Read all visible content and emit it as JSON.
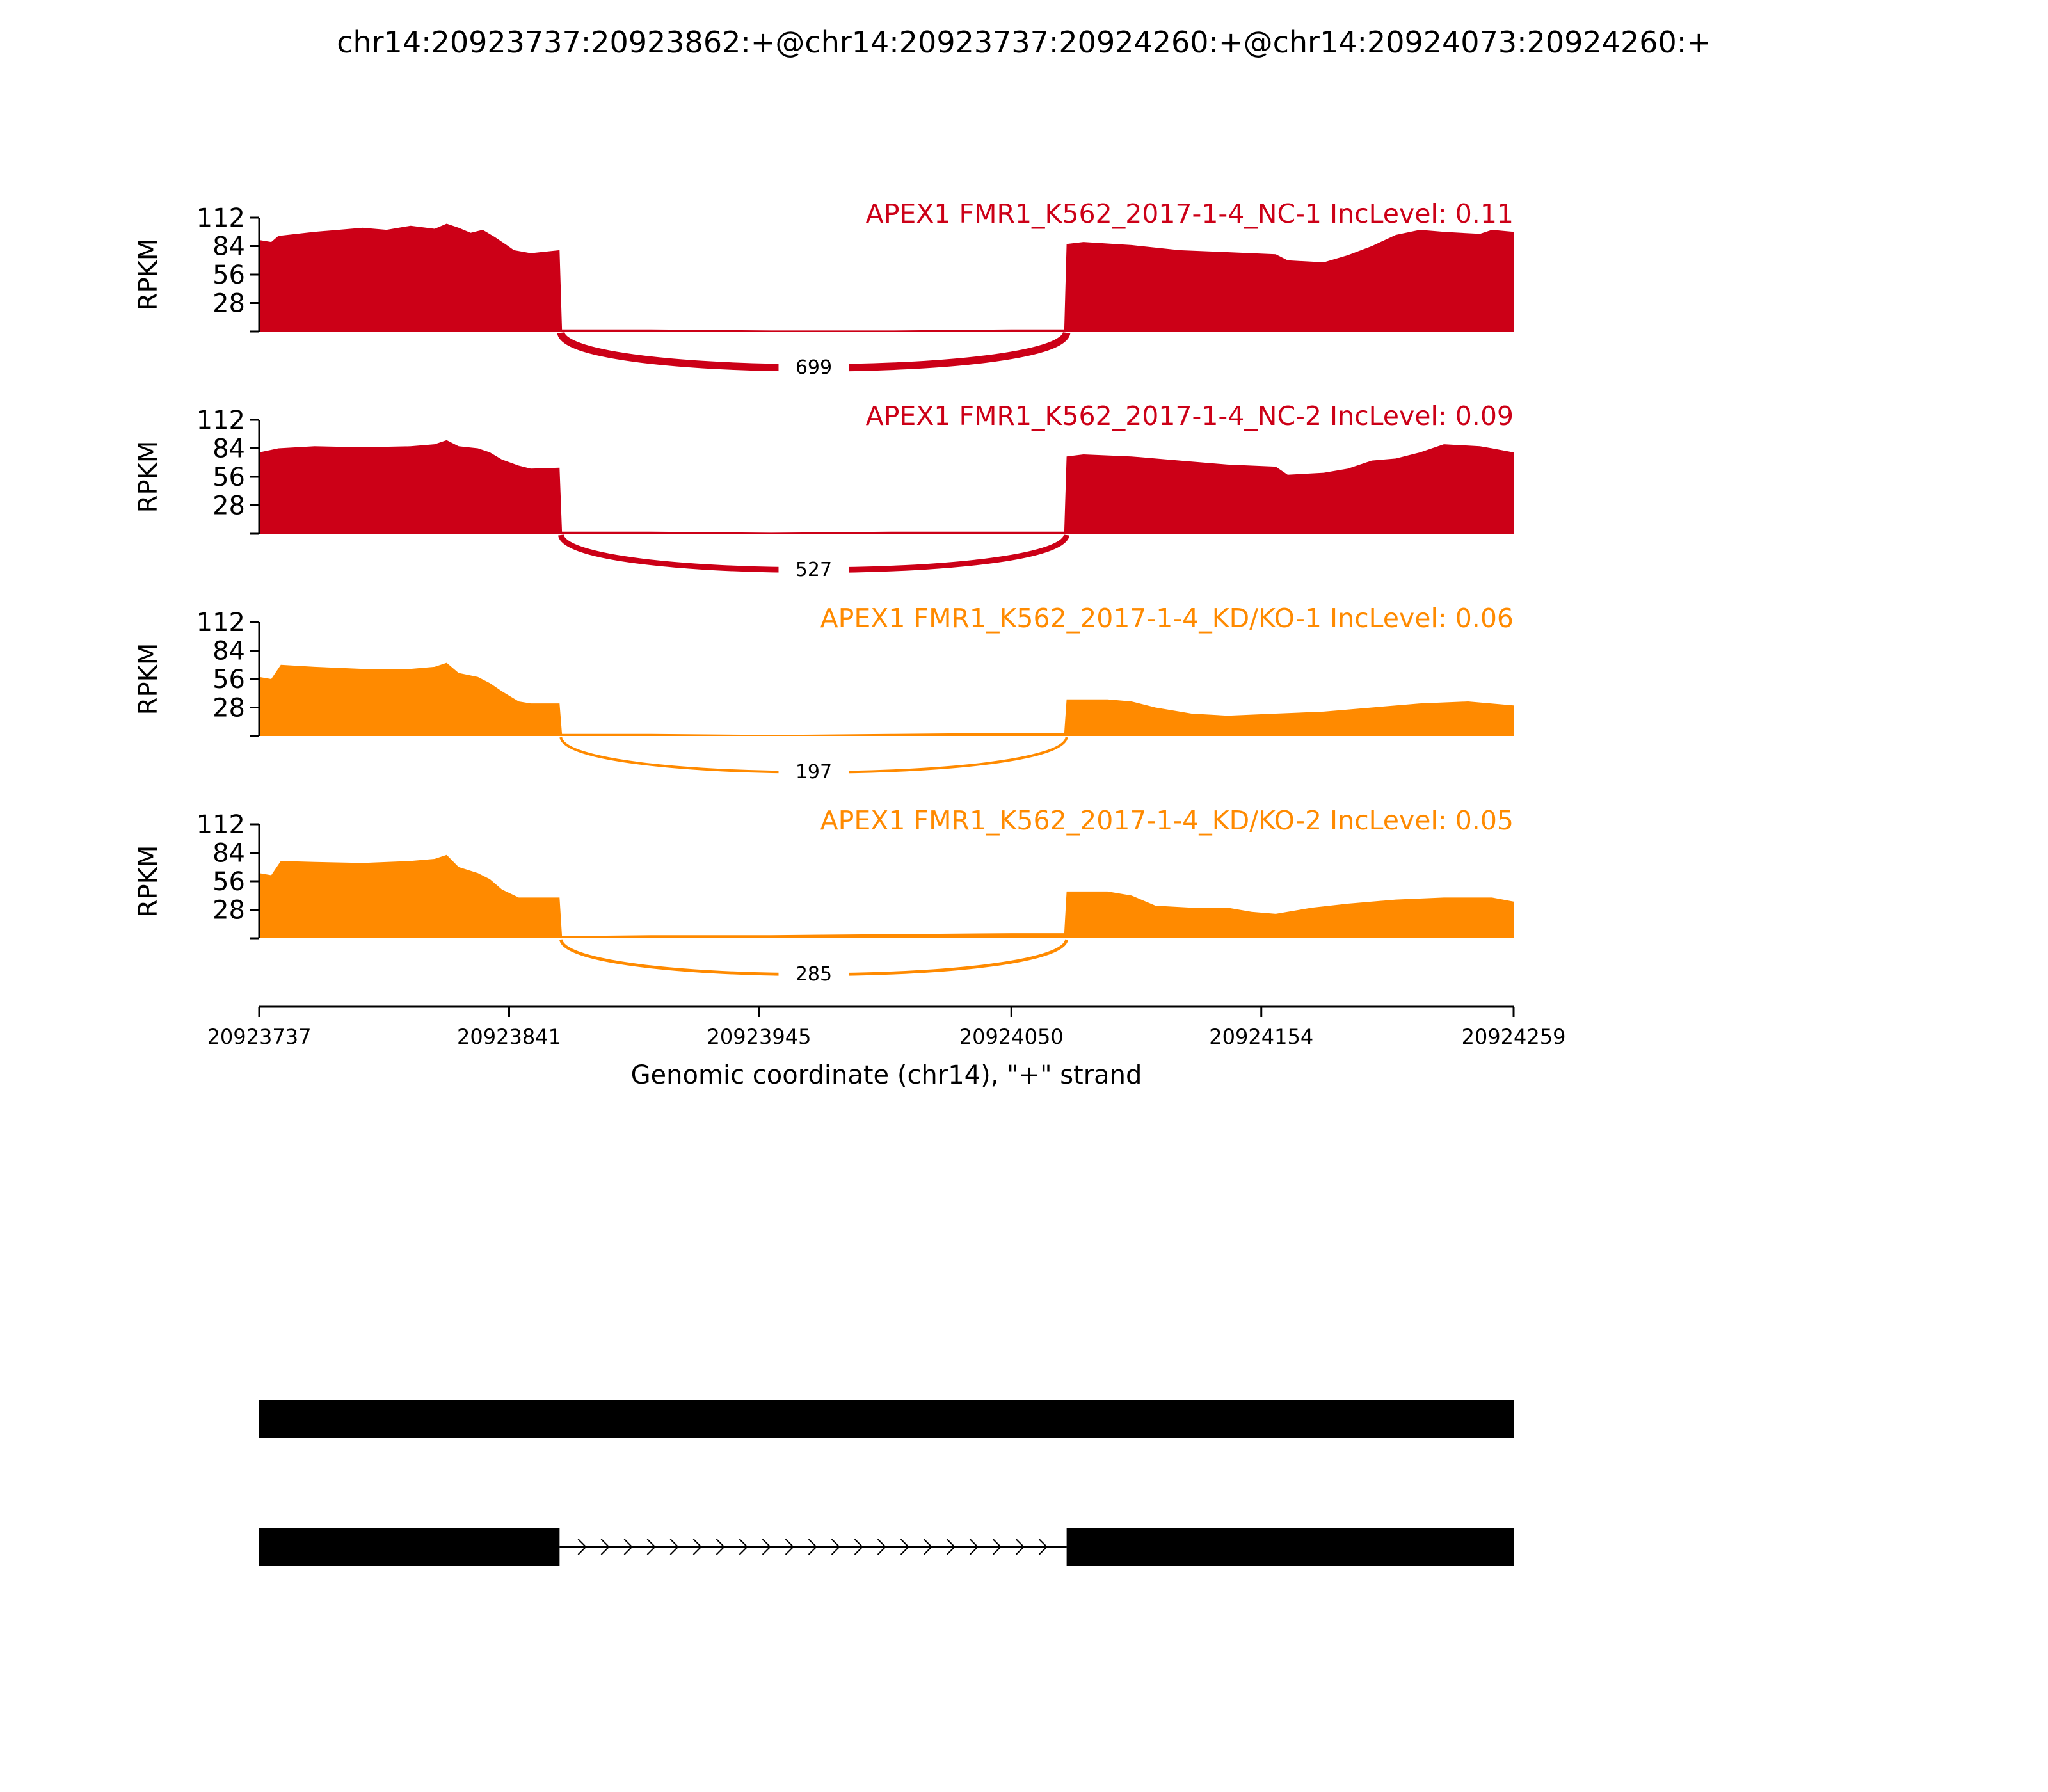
{
  "title": "chr14:20923737:20923862:+@chr14:20923737:20924260:+@chr14:20924073:20924260:+",
  "colors": {
    "nc": "#cc0017",
    "kd": "#ff8a00",
    "axis": "#000000",
    "gene": "#000000"
  },
  "chart_data": {
    "type": "area",
    "title": "chr14:20923737:20923862:+@chr14:20923737:20924260:+@chr14:20924073:20924260:+",
    "xlabel": "Genomic coordinate (chr14), \"+\" strand",
    "ylabel": "RPKM",
    "xlim": [
      20923737,
      20924259
    ],
    "ylim": [
      0,
      112
    ],
    "x_ticks": [
      "20923737",
      "20923841",
      "20923945",
      "20924050",
      "20924154",
      "20924259"
    ],
    "y_ticks": [
      "28",
      "56",
      "84",
      "112"
    ],
    "tracks": [
      {
        "label": "APEX1 FMR1_K562_2017-1-4_NC-1 IncLevel: 0.11",
        "color": "#cc0017",
        "junction_count": "699",
        "x": [
          20923737,
          20923742,
          20923745,
          20923760,
          20923770,
          20923780,
          20923790,
          20923800,
          20923810,
          20923815,
          20923820,
          20923825,
          20923830,
          20923835,
          20923840,
          20923843,
          20923850,
          20923862,
          20923863,
          20923900,
          20923950,
          20924000,
          20924050,
          20924072,
          20924073,
          20924080,
          20924100,
          20924120,
          20924140,
          20924160,
          20924165,
          20924180,
          20924190,
          20924200,
          20924210,
          20924220,
          20924230,
          20924245,
          20924250,
          20924259
        ],
        "y": [
          90,
          88,
          94,
          98,
          100,
          102,
          100,
          104,
          101,
          106,
          102,
          97,
          100,
          93,
          85,
          80,
          77,
          80,
          2,
          2,
          1,
          1,
          2,
          2,
          86,
          88,
          85,
          80,
          78,
          76,
          70,
          68,
          75,
          84,
          95,
          100,
          98,
          96,
          100,
          98
        ]
      },
      {
        "label": "APEX1 FMR1_K562_2017-1-4_NC-2 IncLevel: 0.09",
        "color": "#cc0017",
        "junction_count": "527",
        "x": [
          20923737,
          20923745,
          20923760,
          20923780,
          20923800,
          20923810,
          20923815,
          20923820,
          20923828,
          20923833,
          20923838,
          20923845,
          20923850,
          20923862,
          20923863,
          20923900,
          20923950,
          20924000,
          20924050,
          20924072,
          20924073,
          20924080,
          20924100,
          20924120,
          20924140,
          20924160,
          20924165,
          20924180,
          20924190,
          20924200,
          20924210,
          20924220,
          20924230,
          20924245,
          20924250,
          20924259
        ],
        "y": [
          80,
          84,
          86,
          85,
          86,
          88,
          92,
          86,
          84,
          80,
          73,
          67,
          64,
          65,
          2,
          2,
          1,
          2,
          2,
          2,
          76,
          78,
          76,
          72,
          68,
          66,
          58,
          60,
          64,
          72,
          74,
          80,
          88,
          86,
          84,
          80
        ]
      },
      {
        "label": "APEX1 FMR1_K562_2017-1-4_KD/KO-1 IncLevel: 0.06",
        "color": "#ff8a00",
        "junction_count": "197",
        "x": [
          20923737,
          20923742,
          20923746,
          20923760,
          20923780,
          20923800,
          20923810,
          20923815,
          20923820,
          20923828,
          20923833,
          20923838,
          20923845,
          20923850,
          20923862,
          20923863,
          20923900,
          20923950,
          20924000,
          20924050,
          20924072,
          20924073,
          20924090,
          20924100,
          20924110,
          20924125,
          20924140,
          20924160,
          20924180,
          20924200,
          20924220,
          20924240,
          20924259
        ],
        "y": [
          58,
          56,
          70,
          68,
          66,
          66,
          68,
          72,
          62,
          58,
          52,
          44,
          34,
          32,
          32,
          2,
          2,
          1,
          2,
          3,
          3,
          36,
          36,
          34,
          28,
          22,
          20,
          22,
          24,
          28,
          32,
          34,
          30
        ]
      },
      {
        "label": "APEX1 FMR1_K562_2017-1-4_KD/KO-2 IncLevel: 0.05",
        "color": "#ff8a00",
        "junction_count": "285",
        "x": [
          20923737,
          20923742,
          20923746,
          20923760,
          20923780,
          20923800,
          20923810,
          20923815,
          20923820,
          20923828,
          20923833,
          20923838,
          20923845,
          20923850,
          20923862,
          20923863,
          20923900,
          20923950,
          20924000,
          20924050,
          20924072,
          20924073,
          20924090,
          20924100,
          20924110,
          20924125,
          20924140,
          20924150,
          20924160,
          20924175,
          20924190,
          20924210,
          20924230,
          20924250,
          20924259
        ],
        "y": [
          64,
          62,
          76,
          75,
          74,
          76,
          78,
          82,
          70,
          64,
          58,
          48,
          40,
          40,
          40,
          2,
          3,
          3,
          4,
          5,
          5,
          46,
          46,
          42,
          32,
          30,
          30,
          26,
          24,
          30,
          34,
          38,
          40,
          40,
          36
        ]
      }
    ],
    "gene_models": [
      {
        "exons": [
          [
            20923737,
            20924259
          ]
        ]
      },
      {
        "exons": [
          [
            20923737,
            20923862
          ],
          [
            20924073,
            20924259
          ]
        ]
      }
    ]
  }
}
